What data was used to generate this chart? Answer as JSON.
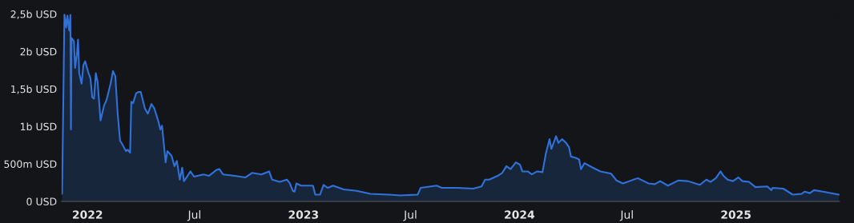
{
  "chart_data": {
    "type": "area",
    "color": "#2f72dc",
    "grid": false,
    "legend": false,
    "xlim": [
      "2021-11-18",
      "2025-06-25"
    ],
    "xticks": [
      {
        "value": "2022-01-01",
        "label": "2022"
      },
      {
        "value": "2022-07-01",
        "label": "Jul"
      },
      {
        "value": "2023-01-01",
        "label": "2023"
      },
      {
        "value": "2023-07-01",
        "label": "Jul"
      },
      {
        "value": "2024-01-01",
        "label": "2024"
      },
      {
        "value": "2024-07-01",
        "label": "Jul"
      },
      {
        "value": "2025-01-01",
        "label": "2025"
      }
    ],
    "ylim": [
      0,
      2500000000
    ],
    "yticks": [
      {
        "value": 0,
        "label": "0 USD"
      },
      {
        "value": 500000000,
        "label": "500m USD"
      },
      {
        "value": 1000000000,
        "label": "1b USD"
      },
      {
        "value": 1500000000,
        "label": "1,5b USD"
      },
      {
        "value": 2000000000,
        "label": "2b USD"
      },
      {
        "value": 2500000000,
        "label": "2,5b USD"
      }
    ],
    "x": [
      "2021-11-19",
      "2021-11-23",
      "2021-11-26",
      "2021-11-28",
      "2021-12-01",
      "2021-12-03",
      "2021-12-04",
      "2021-12-05",
      "2021-12-09",
      "2021-12-11",
      "2021-12-14",
      "2021-12-16",
      "2021-12-18",
      "2021-12-22",
      "2021-12-25",
      "2021-12-28",
      "2022-01-02",
      "2022-01-06",
      "2022-01-09",
      "2022-01-12",
      "2022-01-15",
      "2022-01-18",
      "2022-01-23",
      "2022-01-29",
      "2022-02-02",
      "2022-02-09",
      "2022-02-13",
      "2022-02-17",
      "2022-02-21",
      "2022-02-25",
      "2022-03-01",
      "2022-03-07",
      "2022-03-10",
      "2022-03-14",
      "2022-03-16",
      "2022-03-19",
      "2022-03-24",
      "2022-03-28",
      "2022-04-01",
      "2022-04-08",
      "2022-04-13",
      "2022-04-19",
      "2022-04-24",
      "2022-05-01",
      "2022-05-04",
      "2022-05-07",
      "2022-05-13",
      "2022-05-16",
      "2022-05-23",
      "2022-05-28",
      "2022-06-01",
      "2022-06-06",
      "2022-06-10",
      "2022-06-13",
      "2022-06-19",
      "2022-06-24",
      "2022-06-30",
      "2022-07-16",
      "2022-07-25",
      "2022-08-07",
      "2022-08-12",
      "2022-08-18",
      "2022-09-07",
      "2022-09-25",
      "2022-10-06",
      "2022-10-22",
      "2022-11-04",
      "2022-11-09",
      "2022-11-22",
      "2022-12-04",
      "2022-12-09",
      "2022-12-14",
      "2022-12-17",
      "2022-12-20",
      "2022-12-28",
      "2023-01-17",
      "2023-01-21",
      "2023-01-29",
      "2023-02-04",
      "2023-02-11",
      "2023-02-20",
      "2023-03-10",
      "2023-04-01",
      "2023-04-24",
      "2023-05-25",
      "2023-06-14",
      "2023-07-13",
      "2023-07-18",
      "2023-08-14",
      "2023-08-23",
      "2023-09-18",
      "2023-10-15",
      "2023-10-29",
      "2023-11-04",
      "2023-11-11",
      "2023-11-25",
      "2023-12-03",
      "2023-12-10",
      "2023-12-17",
      "2023-12-26",
      "2024-01-02",
      "2024-01-06",
      "2024-01-15",
      "2024-01-22",
      "2024-01-31",
      "2024-02-09",
      "2024-02-15",
      "2024-02-21",
      "2024-02-24",
      "2024-03-03",
      "2024-03-07",
      "2024-03-13",
      "2024-03-20",
      "2024-03-25",
      "2024-03-28",
      "2024-04-05",
      "2024-04-11",
      "2024-04-14",
      "2024-04-20",
      "2024-05-04",
      "2024-05-17",
      "2024-06-04",
      "2024-06-13",
      "2024-06-24",
      "2024-07-19",
      "2024-08-06",
      "2024-08-17",
      "2024-08-26",
      "2024-09-08",
      "2024-09-26",
      "2024-10-12",
      "2024-11-01",
      "2024-11-12",
      "2024-11-19",
      "2024-11-28",
      "2024-12-06",
      "2024-12-11",
      "2024-12-18",
      "2024-12-27",
      "2025-01-05",
      "2025-01-12",
      "2025-01-23",
      "2025-02-03",
      "2025-02-23",
      "2025-03-02",
      "2025-03-04",
      "2025-03-22",
      "2025-04-07",
      "2025-04-22",
      "2025-04-27",
      "2025-05-06",
      "2025-05-13",
      "2025-05-28",
      "2025-06-24"
    ],
    "values": [
      100000000,
      2500000000,
      2320000000,
      2480000000,
      2280000000,
      2490000000,
      960000000,
      2180000000,
      2140000000,
      1780000000,
      1960000000,
      2160000000,
      1710000000,
      1570000000,
      1820000000,
      1870000000,
      1730000000,
      1640000000,
      1390000000,
      1370000000,
      1710000000,
      1600000000,
      1080000000,
      1280000000,
      1350000000,
      1570000000,
      1740000000,
      1670000000,
      1170000000,
      810000000,
      760000000,
      670000000,
      690000000,
      650000000,
      1330000000,
      1310000000,
      1440000000,
      1460000000,
      1460000000,
      1240000000,
      1170000000,
      1300000000,
      1240000000,
      1060000000,
      960000000,
      1010000000,
      520000000,
      670000000,
      610000000,
      470000000,
      540000000,
      290000000,
      450000000,
      270000000,
      340000000,
      400000000,
      330000000,
      360000000,
      340000000,
      420000000,
      430000000,
      360000000,
      340000000,
      320000000,
      380000000,
      360000000,
      400000000,
      290000000,
      260000000,
      290000000,
      240000000,
      140000000,
      130000000,
      240000000,
      210000000,
      210000000,
      90000000,
      90000000,
      220000000,
      180000000,
      210000000,
      160000000,
      140000000,
      100000000,
      90000000,
      80000000,
      90000000,
      180000000,
      210000000,
      180000000,
      180000000,
      170000000,
      200000000,
      290000000,
      290000000,
      340000000,
      380000000,
      470000000,
      430000000,
      520000000,
      490000000,
      400000000,
      400000000,
      360000000,
      400000000,
      390000000,
      650000000,
      830000000,
      700000000,
      870000000,
      780000000,
      830000000,
      780000000,
      720000000,
      600000000,
      580000000,
      560000000,
      430000000,
      510000000,
      450000000,
      400000000,
      370000000,
      280000000,
      240000000,
      310000000,
      240000000,
      230000000,
      270000000,
      210000000,
      280000000,
      270000000,
      220000000,
      290000000,
      260000000,
      310000000,
      400000000,
      340000000,
      290000000,
      270000000,
      320000000,
      270000000,
      260000000,
      190000000,
      200000000,
      150000000,
      180000000,
      170000000,
      90000000,
      100000000,
      130000000,
      110000000,
      150000000,
      130000000,
      90000000
    ]
  }
}
